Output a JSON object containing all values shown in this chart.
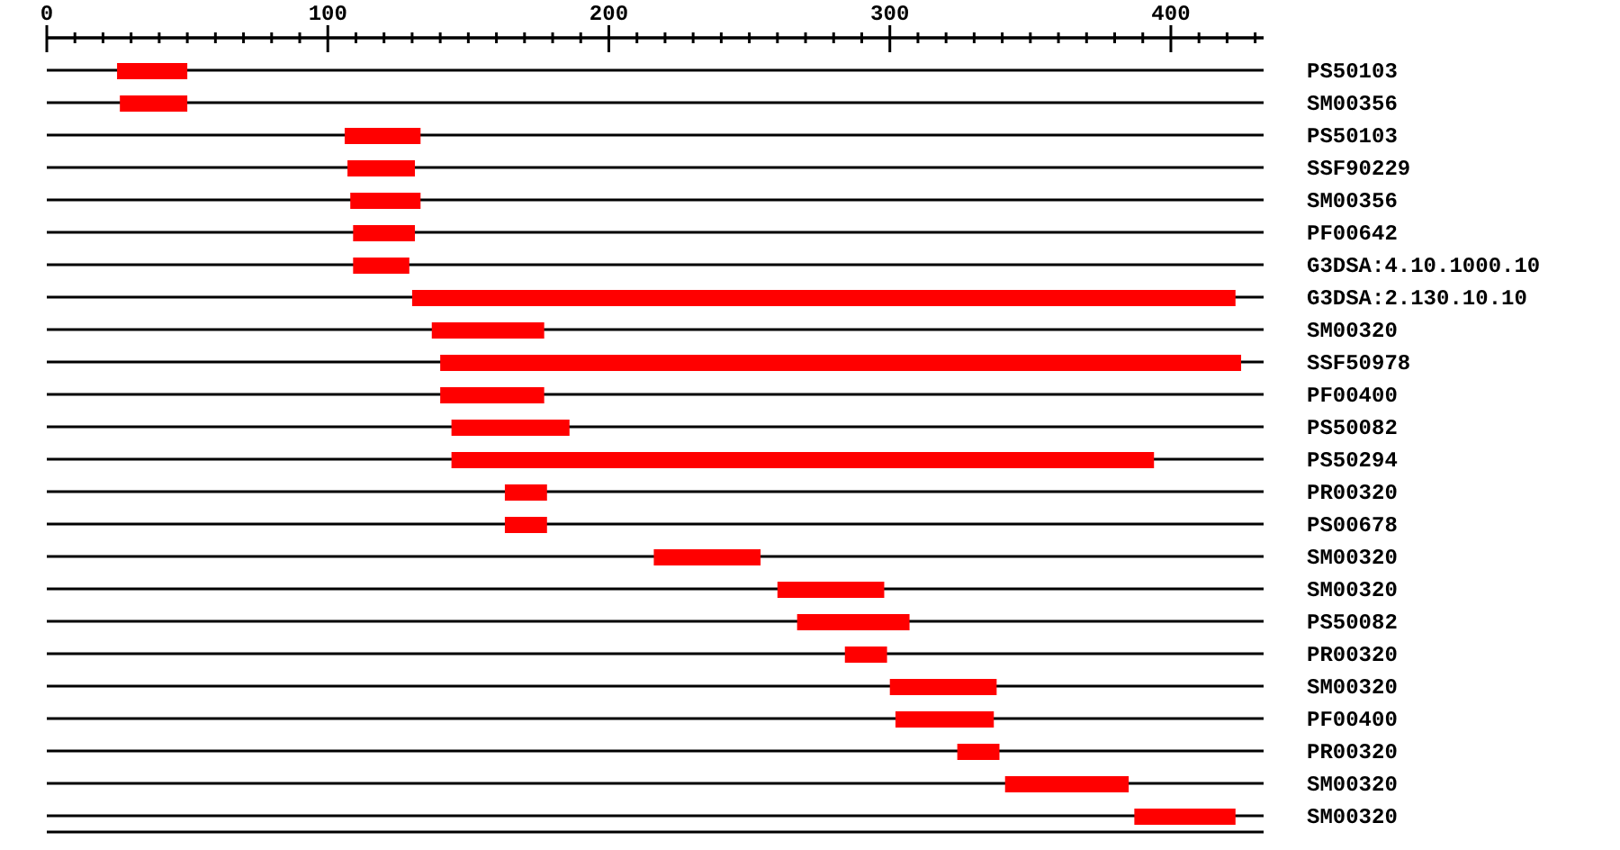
{
  "chart_data": {
    "type": "bar",
    "orientation": "horizontal",
    "grid": "y",
    "categories": [
      "PS50103",
      "SM00356",
      "PS50103",
      "SSF90229",
      "SM00356",
      "PF00642",
      "G3DSA:4.10.1000.10",
      "G3DSA:2.130.10.10",
      "SM00320",
      "SSF50978",
      "PF00400",
      "PS50082",
      "PS50294",
      "PR00320",
      "PS00678",
      "SM00320",
      "SM00320",
      "PS50082",
      "PR00320",
      "SM00320",
      "PF00400",
      "PR00320",
      "SM00320",
      "SM00320"
    ],
    "base": [
      25,
      26,
      106,
      107,
      108,
      109,
      109,
      130,
      137,
      140,
      140,
      144,
      144,
      163,
      163,
      216,
      260,
      267,
      284,
      300,
      302,
      324,
      341,
      387
    ],
    "values": [
      25,
      24,
      27,
      24,
      25,
      22,
      20,
      293,
      40,
      285,
      37,
      42,
      250,
      15,
      15,
      38,
      38,
      40,
      15,
      38,
      35,
      15,
      44,
      36
    ],
    "color": "#ff0000",
    "xlim": [
      0,
      433
    ],
    "xticks": [
      0,
      {
        "value": 10,
        "label": null
      },
      {
        "value": 20,
        "label": null
      },
      {
        "value": 30,
        "label": null
      },
      {
        "value": 40,
        "label": null
      },
      {
        "value": 50,
        "label": null
      },
      {
        "value": 60,
        "label": null
      },
      {
        "value": 70,
        "label": null
      },
      {
        "value": 80,
        "label": null
      },
      {
        "value": 90,
        "label": null
      },
      100,
      {
        "value": 110,
        "label": null
      },
      {
        "value": 120,
        "label": null
      },
      {
        "value": 130,
        "label": null
      },
      {
        "value": 140,
        "label": null
      },
      {
        "value": 150,
        "label": null
      },
      {
        "value": 160,
        "label": null
      },
      {
        "value": 170,
        "label": null
      },
      {
        "value": 180,
        "label": null
      },
      {
        "value": 190,
        "label": null
      },
      200,
      {
        "value": 210,
        "label": null
      },
      {
        "value": 220,
        "label": null
      },
      {
        "value": 230,
        "label": null
      },
      {
        "value": 240,
        "label": null
      },
      {
        "value": 250,
        "label": null
      },
      {
        "value": 260,
        "label": null
      },
      {
        "value": 270,
        "label": null
      },
      {
        "value": 280,
        "label": null
      },
      {
        "value": 290,
        "label": null
      },
      300,
      {
        "value": 310,
        "label": null
      },
      {
        "value": 320,
        "label": null
      },
      {
        "value": 330,
        "label": null
      },
      {
        "value": 340,
        "label": null
      },
      {
        "value": 350,
        "label": null
      },
      {
        "value": 360,
        "label": null
      },
      {
        "value": 370,
        "label": null
      },
      {
        "value": 380,
        "label": null
      },
      {
        "value": 390,
        "label": null
      },
      400,
      {
        "value": 410,
        "label": null
      },
      {
        "value": 420,
        "label": null
      },
      {
        "value": 430,
        "label": null
      }
    ]
  }
}
